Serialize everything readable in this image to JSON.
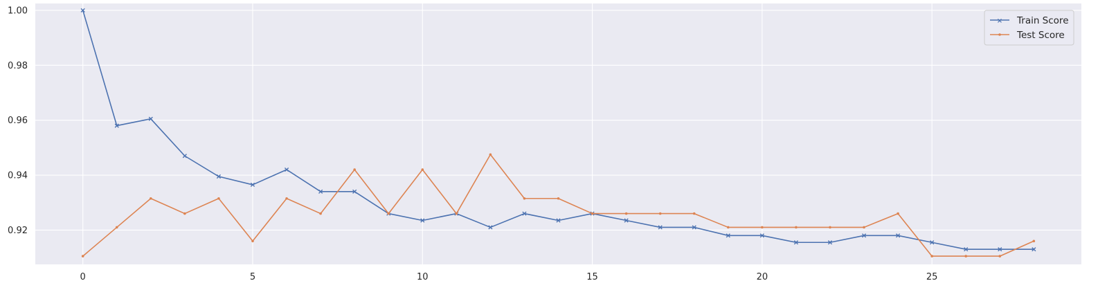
{
  "chart_data": {
    "type": "line",
    "title": "",
    "xlabel": "",
    "ylabel": "",
    "xlim": [
      -1.4,
      29.4
    ],
    "ylim": [
      0.9075,
      1.0025
    ],
    "xticks": [
      0,
      5,
      10,
      15,
      20,
      25
    ],
    "yticks": [
      0.92,
      0.94,
      0.96,
      0.98,
      1.0
    ],
    "ytick_labels": [
      "0.92",
      "0.94",
      "0.96",
      "0.98",
      "1.00"
    ],
    "grid": true,
    "legend_position": "top-right",
    "x": [
      0,
      1,
      2,
      3,
      4,
      5,
      6,
      7,
      8,
      9,
      10,
      11,
      12,
      13,
      14,
      15,
      16,
      17,
      18,
      19,
      20,
      21,
      22,
      23,
      24,
      25,
      26,
      27,
      28
    ],
    "series": [
      {
        "name": "Train Score",
        "color": "#4c72b0",
        "marker": "x",
        "values": [
          1.0,
          0.958,
          0.9605,
          0.947,
          0.9395,
          0.9365,
          0.942,
          0.934,
          0.934,
          0.926,
          0.9235,
          0.926,
          0.921,
          0.926,
          0.9235,
          0.926,
          0.9235,
          0.921,
          0.921,
          0.918,
          0.918,
          0.9155,
          0.9155,
          0.918,
          0.918,
          0.9155,
          0.913,
          0.913,
          0.913
        ]
      },
      {
        "name": "Test Score",
        "color": "#dd8452",
        "marker": ".",
        "values": [
          0.9105,
          0.921,
          0.9315,
          0.926,
          0.9315,
          0.916,
          0.9315,
          0.926,
          0.942,
          0.926,
          0.942,
          0.926,
          0.9475,
          0.9315,
          0.9315,
          0.926,
          0.926,
          0.926,
          0.926,
          0.921,
          0.921,
          0.921,
          0.921,
          0.921,
          0.926,
          0.9105,
          0.9105,
          0.9105,
          0.916
        ]
      }
    ]
  }
}
